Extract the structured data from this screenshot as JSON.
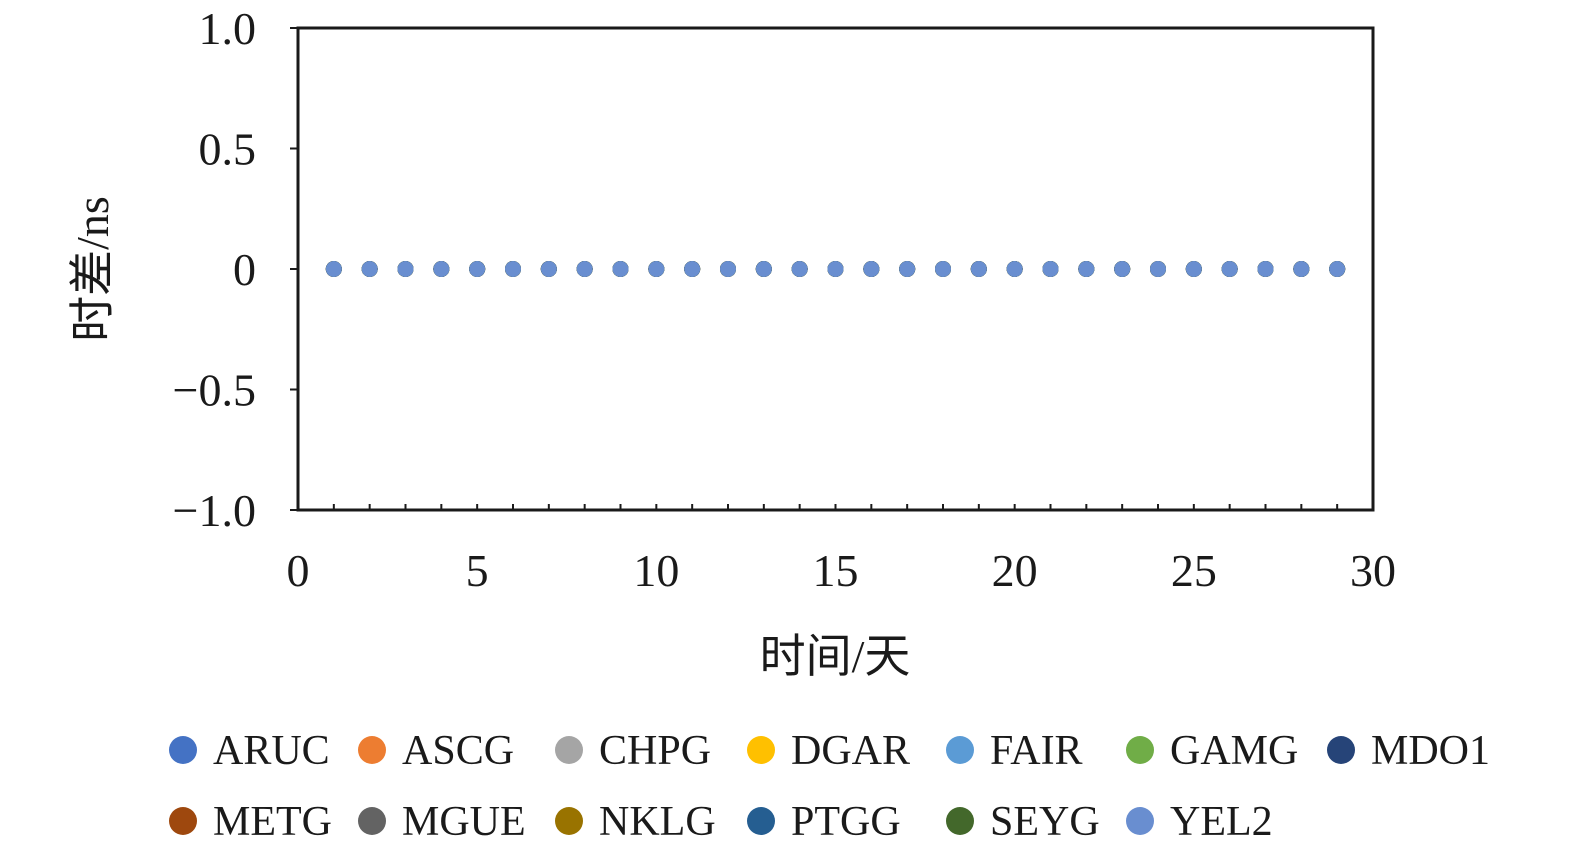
{
  "chart_data": {
    "type": "scatter",
    "xlabel": "时间/天",
    "ylabel": "时差/ns",
    "xlim": [
      0,
      30
    ],
    "ylim": [
      -1.0,
      1.0
    ],
    "x_ticks": [
      0,
      5,
      10,
      15,
      20,
      25,
      30
    ],
    "x_tick_labels": [
      "0",
      "5",
      "10",
      "15",
      "20",
      "25",
      "30"
    ],
    "y_ticks": [
      1.0,
      0.5,
      0,
      -0.5,
      -1.0
    ],
    "y_tick_labels": [
      "1.0",
      "0.5",
      "0",
      "−0.5",
      "−1.0"
    ],
    "x_minor_step": 1,
    "grid": false,
    "legend_position": "bottom",
    "x": [
      1,
      2,
      3,
      4,
      5,
      6,
      7,
      8,
      9,
      10,
      11,
      12,
      13,
      14,
      15,
      16,
      17,
      18,
      19,
      20,
      21,
      22,
      23,
      24,
      25,
      26,
      27,
      28,
      29
    ],
    "series": [
      {
        "name": "ARUC",
        "color": "#4472c4",
        "values": [
          0,
          0,
          0,
          0,
          0,
          0,
          0,
          0,
          0,
          0,
          0,
          0,
          0,
          0,
          0,
          0,
          0,
          0,
          0,
          0,
          0,
          0,
          0,
          0,
          0,
          0,
          0,
          0,
          0
        ]
      },
      {
        "name": "ASCG",
        "color": "#ed7d31",
        "values": [
          0,
          0,
          0,
          0,
          0,
          0,
          0,
          0,
          0,
          0,
          0,
          0,
          0,
          0,
          0,
          0,
          0,
          0,
          0,
          0,
          0,
          0,
          0,
          0,
          0,
          0,
          0,
          0,
          0
        ]
      },
      {
        "name": "CHPG",
        "color": "#a5a5a5",
        "values": [
          0,
          0,
          0,
          0,
          0,
          0,
          0,
          0,
          0,
          0,
          0,
          0,
          0,
          0,
          0,
          0,
          0,
          0,
          0,
          0,
          0,
          0,
          0,
          0,
          0,
          0,
          0,
          0,
          0
        ]
      },
      {
        "name": "DGAR",
        "color": "#ffc000",
        "values": [
          0,
          0,
          0,
          0,
          0,
          0,
          0,
          0,
          0,
          0,
          0,
          0,
          0,
          0,
          0,
          0,
          0,
          0,
          0,
          0,
          0,
          0,
          0,
          0,
          0,
          0,
          0,
          0,
          0
        ]
      },
      {
        "name": "FAIR",
        "color": "#5b9bd5",
        "values": [
          0,
          0,
          0,
          0,
          0,
          0,
          0,
          0,
          0,
          0,
          0,
          0,
          0,
          0,
          0,
          0,
          0,
          0,
          0,
          0,
          0,
          0,
          0,
          0,
          0,
          0,
          0,
          0,
          0
        ]
      },
      {
        "name": "GAMG",
        "color": "#70ad47",
        "values": [
          0,
          0,
          0,
          0,
          0,
          0,
          0,
          0,
          0,
          0,
          0,
          0,
          0,
          0,
          0,
          0,
          0,
          0,
          0,
          0,
          0,
          0,
          0,
          0,
          0,
          0,
          0,
          0,
          0
        ]
      },
      {
        "name": "MDO1",
        "color": "#264478",
        "values": [
          0,
          0,
          0,
          0,
          0,
          0,
          0,
          0,
          0,
          0,
          0,
          0,
          0,
          0,
          0,
          0,
          0,
          0,
          0,
          0,
          0,
          0,
          0,
          0,
          0,
          0,
          0,
          0,
          0
        ]
      },
      {
        "name": "METG",
        "color": "#9e480e",
        "values": [
          0,
          0,
          0,
          0,
          0,
          0,
          0,
          0,
          0,
          0,
          0,
          0,
          0,
          0,
          0,
          0,
          0,
          0,
          0,
          0,
          0,
          0,
          0,
          0,
          0,
          0,
          0,
          0,
          0
        ]
      },
      {
        "name": "MGUE",
        "color": "#636363",
        "values": [
          0,
          0,
          0,
          0,
          0,
          0,
          0,
          0,
          0,
          0,
          0,
          0,
          0,
          0,
          0,
          0,
          0,
          0,
          0,
          0,
          0,
          0,
          0,
          0,
          0,
          0,
          0,
          0,
          0
        ]
      },
      {
        "name": "NKLG",
        "color": "#997300",
        "values": [
          0,
          0,
          0,
          0,
          0,
          0,
          0,
          0,
          0,
          0,
          0,
          0,
          0,
          0,
          0,
          0,
          0,
          0,
          0,
          0,
          0,
          0,
          0,
          0,
          0,
          0,
          0,
          0,
          0
        ]
      },
      {
        "name": "PTGG",
        "color": "#255e91",
        "values": [
          0,
          0,
          0,
          0,
          0,
          0,
          0,
          0,
          0,
          0,
          0,
          0,
          0,
          0,
          0,
          0,
          0,
          0,
          0,
          0,
          0,
          0,
          0,
          0,
          0,
          0,
          0,
          0,
          0
        ]
      },
      {
        "name": "SEYG",
        "color": "#43682b",
        "values": [
          0,
          0,
          0,
          0,
          0,
          0,
          0,
          0,
          0,
          0,
          0,
          0,
          0,
          0,
          0,
          0,
          0,
          0,
          0,
          0,
          0,
          0,
          0,
          0,
          0,
          0,
          0,
          0,
          0
        ]
      },
      {
        "name": "YEL2",
        "color": "#698ed0",
        "values": [
          0,
          0,
          0,
          0,
          0,
          0,
          0,
          0,
          0,
          0,
          0,
          0,
          0,
          0,
          0,
          0,
          0,
          0,
          0,
          0,
          0,
          0,
          0,
          0,
          0,
          0,
          0,
          0,
          0
        ]
      }
    ]
  }
}
